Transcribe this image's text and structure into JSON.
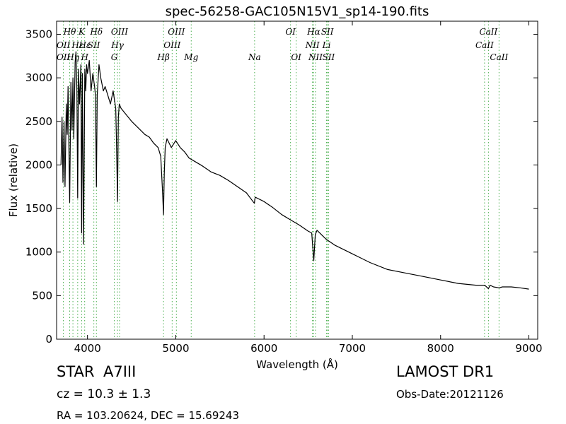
{
  "chart_data": {
    "type": "line",
    "title": "spec-56258-GAC105N15V1_sp14-190.fits",
    "xlabel": "Wavelength (Å)",
    "ylabel": "Flux (relative)",
    "xlim": [
      3650,
      9100
    ],
    "ylim": [
      0,
      3650
    ],
    "xticks": [
      4000,
      5000,
      6000,
      7000,
      8000,
      9000
    ],
    "yticks": [
      0,
      500,
      1000,
      1500,
      2000,
      2500,
      3000,
      3500
    ],
    "grid": false,
    "series": [
      {
        "color": "#000000",
        "x": [
          3700,
          3712,
          3722,
          3734,
          3745,
          3760,
          3770,
          3780,
          3798,
          3812,
          3825,
          3835,
          3845,
          3860,
          3870,
          3880,
          3889,
          3898,
          3910,
          3925,
          3934,
          3942,
          3955,
          3970,
          3980,
          3990,
          4000,
          4020,
          4040,
          4060,
          4080,
          4090,
          4101,
          4110,
          4130,
          4150,
          4180,
          4200,
          4230,
          4260,
          4290,
          4320,
          4330,
          4340,
          4350,
          4360,
          4380,
          4420,
          4460,
          4500,
          4550,
          4600,
          4650,
          4700,
          4750,
          4800,
          4830,
          4850,
          4861,
          4870,
          4880,
          4900,
          4950,
          5000,
          5050,
          5100,
          5150,
          5200,
          5300,
          5400,
          5500,
          5600,
          5700,
          5800,
          5890,
          5900,
          6000,
          6100,
          6200,
          6300,
          6400,
          6500,
          6540,
          6563,
          6580,
          6600,
          6700,
          6800,
          7000,
          7200,
          7400,
          7600,
          7800,
          8000,
          8200,
          8400,
          8500,
          8542,
          8560,
          8600,
          8662,
          8700,
          8800,
          8900,
          9000
        ],
        "y": [
          2000,
          2550,
          1800,
          2500,
          1750,
          2700,
          2350,
          2900,
          1570,
          2950,
          2400,
          3000,
          2300,
          3180,
          3300,
          2850,
          1620,
          3100,
          2700,
          3150,
          1220,
          3050,
          1090,
          3100,
          2850,
          3150,
          3050,
          3200,
          2850,
          3050,
          2900,
          2800,
          1750,
          2800,
          3150,
          3000,
          2850,
          2900,
          2800,
          2700,
          2850,
          2650,
          2200,
          1580,
          2550,
          2700,
          2650,
          2600,
          2550,
          2500,
          2450,
          2400,
          2350,
          2320,
          2250,
          2200,
          2100,
          1700,
          1430,
          1900,
          2200,
          2300,
          2200,
          2280,
          2200,
          2150,
          2080,
          2050,
          1990,
          1920,
          1880,
          1820,
          1750,
          1680,
          1560,
          1630,
          1580,
          1510,
          1430,
          1370,
          1310,
          1240,
          1220,
          900,
          1200,
          1250,
          1150,
          1080,
          980,
          880,
          800,
          760,
          720,
          680,
          640,
          620,
          620,
          580,
          620,
          600,
          590,
          600,
          600,
          590,
          575
        ]
      }
    ],
    "spectral_lines": [
      {
        "label": "Hθ",
        "x": 3798,
        "row": 1
      },
      {
        "label": "K",
        "x": 3934,
        "row": 1
      },
      {
        "label": "Hδ",
        "x": 4101,
        "row": 1
      },
      {
        "label": "OIII",
        "x": 4363,
        "row": 1
      },
      {
        "label": "OIII",
        "x": 5007,
        "row": 1
      },
      {
        "label": "OI",
        "x": 6300,
        "row": 1
      },
      {
        "label": "Hα",
        "x": 6563,
        "row": 1
      },
      {
        "label": "SII",
        "x": 6717,
        "row": 1
      },
      {
        "label": "CaII",
        "x": 8542,
        "row": 1
      },
      {
        "label": "OII",
        "x": 3727,
        "row": 2
      },
      {
        "label": "Hε",
        "x": 3889,
        "row": 2
      },
      {
        "label": "Hε",
        "x": 3970,
        "row": 2
      },
      {
        "label": "SII",
        "x": 4072,
        "row": 2
      },
      {
        "label": "Hγ",
        "x": 4340,
        "row": 2
      },
      {
        "label": "OIII",
        "x": 4959,
        "row": 2
      },
      {
        "label": "NII",
        "x": 6548,
        "row": 2
      },
      {
        "label": "Li",
        "x": 6708,
        "row": 2
      },
      {
        "label": "CaII",
        "x": 8498,
        "row": 2
      },
      {
        "label": "OII",
        "x": 3727,
        "row": 3
      },
      {
        "label": "Hη",
        "x": 3835,
        "row": 3
      },
      {
        "label": "H",
        "x": 3968,
        "row": 3
      },
      {
        "label": "G",
        "x": 4304,
        "row": 3
      },
      {
        "label": "Hβ",
        "x": 4861,
        "row": 3
      },
      {
        "label": "Mg",
        "x": 5175,
        "row": 3
      },
      {
        "label": "Na",
        "x": 5893,
        "row": 3
      },
      {
        "label": "OI",
        "x": 6364,
        "row": 3
      },
      {
        "label": "NII",
        "x": 6583,
        "row": 3
      },
      {
        "label": "SII",
        "x": 6731,
        "row": 3
      },
      {
        "label": "CaII",
        "x": 8662,
        "row": 3
      }
    ],
    "line_markers_x": [
      3727,
      3798,
      3835,
      3889,
      3934,
      3968,
      4072,
      4101,
      4304,
      4340,
      4363,
      4861,
      4959,
      5007,
      5175,
      5893,
      6300,
      6364,
      6548,
      6563,
      6583,
      6708,
      6717,
      6731,
      8498,
      8542,
      8662
    ],
    "marker_color": "#4caf50"
  },
  "info": {
    "object": "STAR",
    "subclass": "A7III",
    "cz": "cz = 10.3 ± 1.3",
    "radec": "RA = 103.20624, DEC = 15.69243",
    "survey": "LAMOST DR1",
    "obs_date": "Obs-Date:20121126"
  }
}
